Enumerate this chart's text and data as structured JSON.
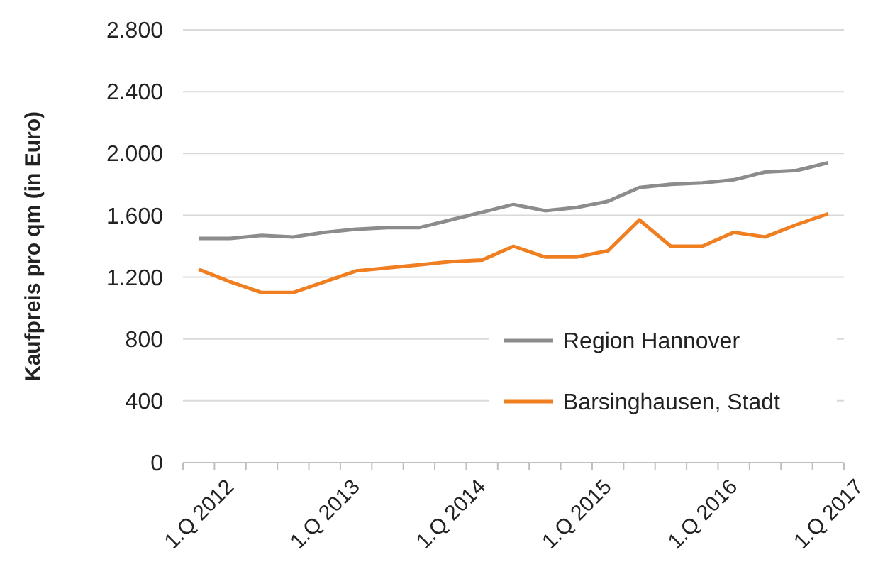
{
  "chart_data": {
    "type": "line",
    "ylabel": "Kaufpreis pro qm (in Euro)",
    "categories": [
      "1.Q 2012",
      null,
      null,
      null,
      "1.Q 2013",
      null,
      null,
      null,
      "1.Q 2014",
      null,
      null,
      null,
      "1.Q 2015",
      null,
      null,
      null,
      "1.Q 2016",
      null,
      null,
      null,
      "1.Q 2017"
    ],
    "series": [
      {
        "name": "Region Hannover",
        "color": "#8c8c8c",
        "values": [
          1450,
          1450,
          1470,
          1460,
          1490,
          1510,
          1520,
          1520,
          1570,
          1620,
          1670,
          1630,
          1650,
          1690,
          1780,
          1800,
          1810,
          1830,
          1880,
          1890,
          1940
        ]
      },
      {
        "name": "Barsinghausen, Stadt",
        "color": "#f07f22",
        "values": [
          1250,
          1170,
          1100,
          1100,
          1170,
          1240,
          1260,
          1280,
          1300,
          1310,
          1400,
          1330,
          1330,
          1370,
          1570,
          1400,
          1400,
          1490,
          1460,
          1540,
          1610
        ]
      }
    ],
    "ylim": [
      0,
      2800
    ],
    "yticks": [
      0,
      400,
      800,
      {
        "value": 1200,
        "label": "1.200"
      },
      {
        "value": 1600,
        "label": "1.600"
      },
      {
        "value": 2000,
        "label": "2.000"
      },
      {
        "value": 2400,
        "label": "2.400"
      },
      {
        "value": 2800,
        "label": "2.800"
      }
    ],
    "grid": "y",
    "legend": "bottom right",
    "marker": "none",
    "line_style": "solid"
  }
}
